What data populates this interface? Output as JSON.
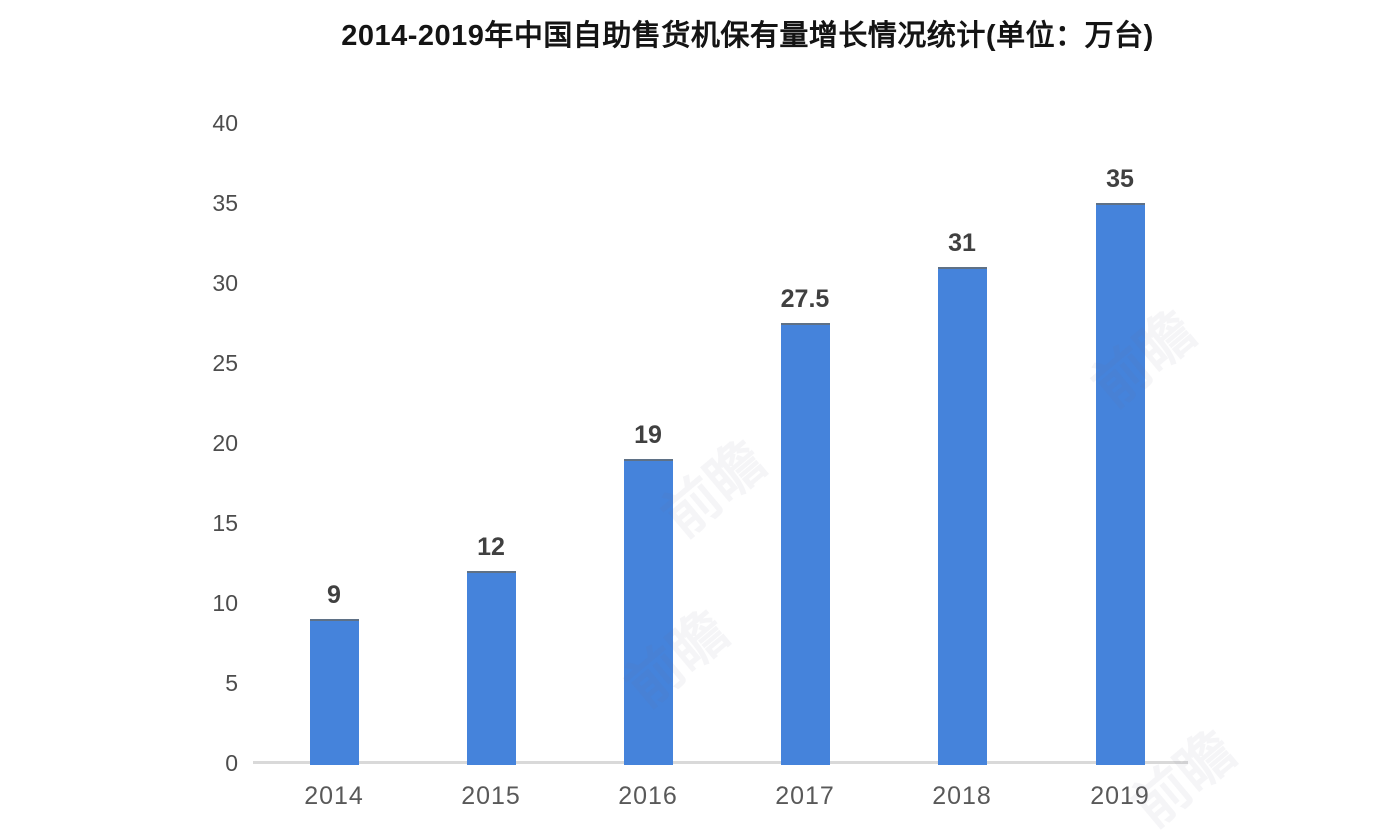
{
  "title": "2014-2019年中国自助售货机保有量增长情况统计(单位：万台)",
  "watermark_text": "前瞻",
  "colors": {
    "bar": "#4583DB",
    "bar_top_edge": "#5f7186",
    "axis_line": "#d9d9d9",
    "title_text": "#141414",
    "tick_text": "#4d4d4d",
    "x_label_text": "#595959",
    "data_label_text": "#404040"
  },
  "chart_data": {
    "type": "bar",
    "title": "2014-2019年中国自助售货机保有量增长情况统计(单位：万台)",
    "categories": [
      "2014",
      "2015",
      "2016",
      "2017",
      "2018",
      "2019"
    ],
    "values": [
      9,
      12,
      19,
      27.5,
      31,
      35
    ],
    "data_labels": [
      "9",
      "12",
      "19",
      "27.5",
      "31",
      "35"
    ],
    "yticks": [
      0,
      5,
      10,
      15,
      20,
      25,
      30,
      35,
      40
    ],
    "ylim": [
      0,
      40
    ],
    "xlabel": "",
    "ylabel": "",
    "unit": "万台",
    "grid": false,
    "legend": false,
    "bar_color": "#4583DB"
  }
}
